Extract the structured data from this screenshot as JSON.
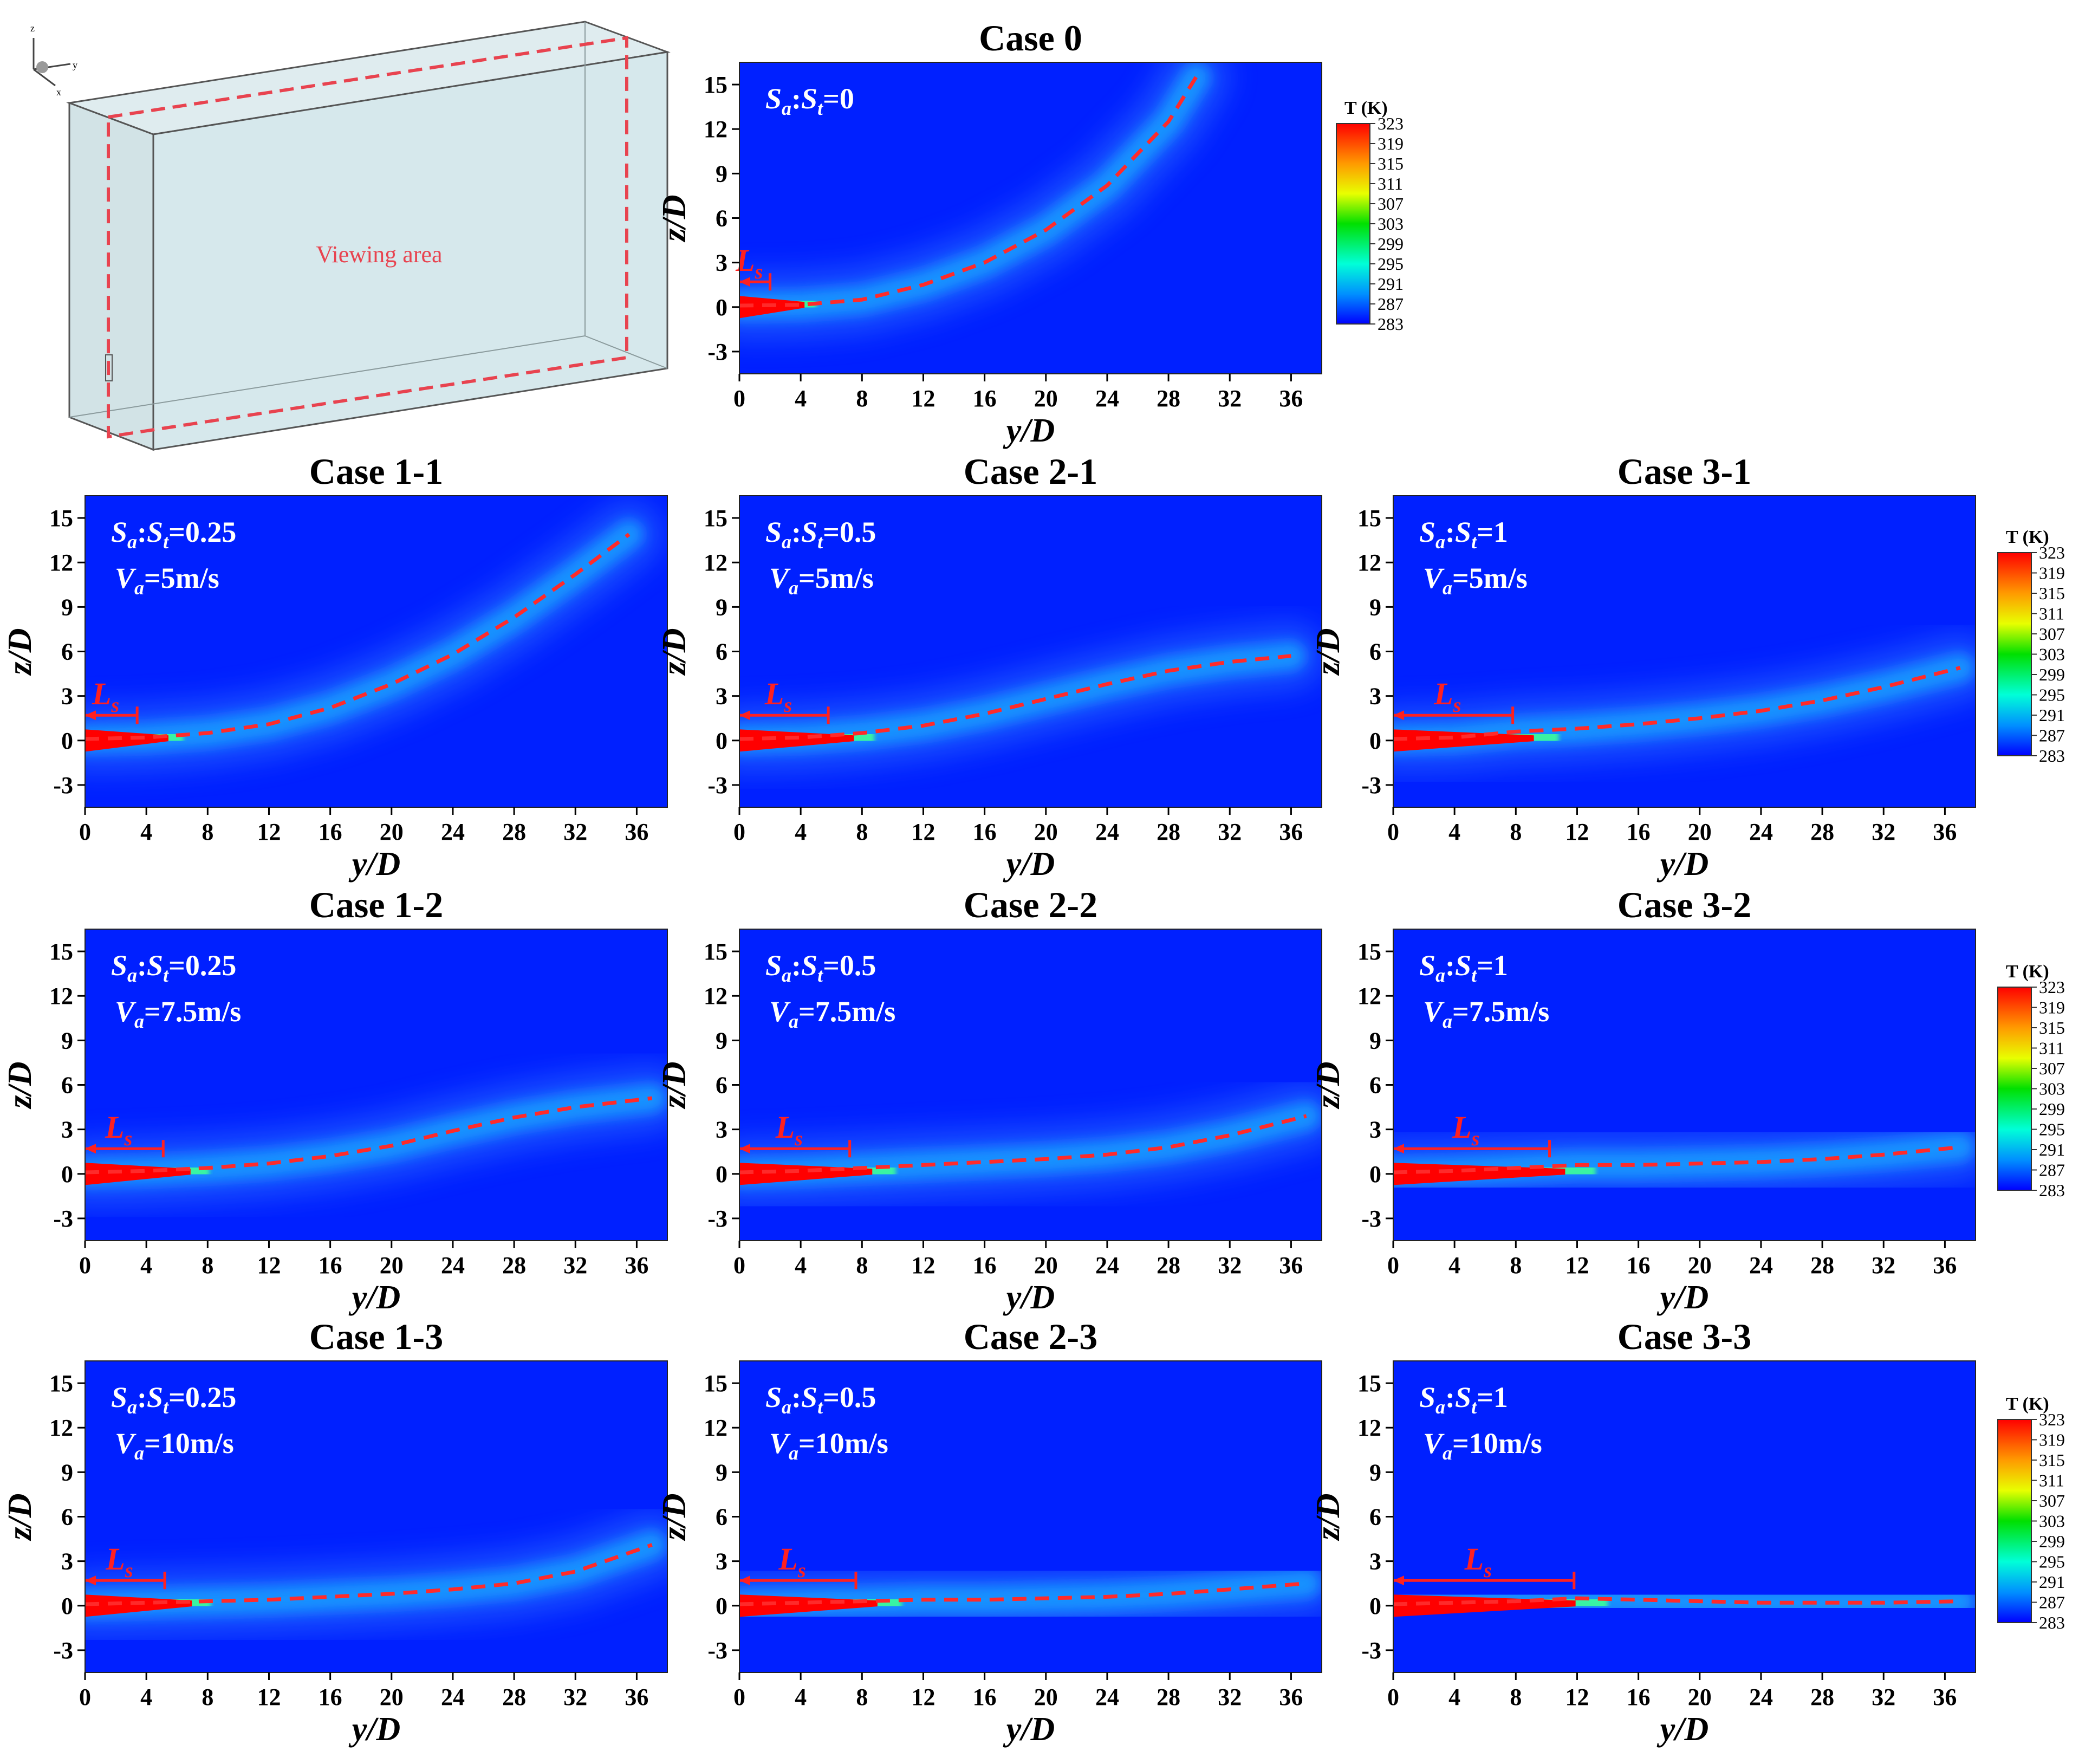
{
  "figure": {
    "viewing_area_label": "Viewing area",
    "axis_triad": {
      "z": "z",
      "y": "y",
      "x": "x"
    }
  },
  "colorbar": {
    "title": "T (K)",
    "labels": [
      "323",
      "319",
      "315",
      "311",
      "307",
      "303",
      "299",
      "295",
      "291",
      "287",
      "283"
    ]
  },
  "colors": {
    "background_field": "#0020ff",
    "jet_core": "#ff0000",
    "trajectory": "#ff2a2a",
    "ls_marker": "#ff2020"
  },
  "axes": {
    "xlabel": "y/D",
    "ylabel": "z/D",
    "xticks": [
      "0",
      "4",
      "8",
      "12",
      "16",
      "20",
      "24",
      "28",
      "32",
      "36"
    ],
    "yticks": [
      "15",
      "12",
      "9",
      "6",
      "3",
      "0",
      "-3"
    ],
    "xlim": [
      0,
      38
    ],
    "ylim": [
      -4.5,
      16.5
    ]
  },
  "chart_data": [
    {
      "type": "heatmap",
      "title": "Case 0",
      "ratio_label": "Sa:St=0",
      "ratio_sub_a": "a",
      "ratio_sub_t": "t",
      "ratio_value": "=0",
      "velocity_label": "",
      "ls_label": "Ls",
      "ls_end": 2.0,
      "trajectory": {
        "x": [
          0,
          4,
          8,
          12,
          16,
          20,
          24,
          28,
          29.8
        ],
        "y": [
          0.1,
          0.15,
          0.5,
          1.5,
          3.0,
          5.2,
          8.2,
          12.5,
          15.5
        ]
      }
    },
    {
      "type": "heatmap",
      "title": "Case 1-1",
      "ratio_label": "Sa:St=0.25",
      "ratio_value": "=0.25",
      "velocity_label": "Va=5m/s",
      "velocity_value": "=5m/s",
      "ls_label": "Ls",
      "ls_end": 3.4,
      "trajectory": {
        "x": [
          0,
          4,
          8,
          12,
          16,
          20,
          24,
          28,
          32,
          35.5
        ],
        "y": [
          0.1,
          0.2,
          0.5,
          1.1,
          2.2,
          3.8,
          5.8,
          8.3,
          11.2,
          13.9
        ]
      }
    },
    {
      "type": "heatmap",
      "title": "Case 2-1",
      "ratio_label": "Sa:St=0.5",
      "ratio_value": "=0.5",
      "velocity_label": "Va=5m/s",
      "velocity_value": "=5m/s",
      "ls_label": "Ls",
      "ls_end": 5.8,
      "trajectory": {
        "x": [
          0,
          4,
          8,
          12,
          16,
          20,
          24,
          28,
          32,
          36
        ],
        "y": [
          0.1,
          0.2,
          0.5,
          1.0,
          1.8,
          2.8,
          3.8,
          4.7,
          5.3,
          5.7
        ]
      }
    },
    {
      "type": "heatmap",
      "title": "Case 3-1",
      "ratio_label": "Sa:St=1",
      "ratio_value": "=1",
      "velocity_label": "Va=5m/s",
      "velocity_value": "=5m/s",
      "ls_label": "Ls",
      "ls_end": 7.8,
      "trajectory": {
        "x": [
          0,
          4,
          8,
          12,
          16,
          20,
          24,
          28,
          32,
          37
        ],
        "y": [
          0.1,
          0.2,
          0.6,
          0.8,
          1.1,
          1.5,
          2.0,
          2.7,
          3.6,
          4.9
        ]
      }
    },
    {
      "type": "heatmap",
      "title": "Case 1-2",
      "ratio_label": "Sa:St=0.25",
      "ratio_value": "=0.25",
      "velocity_label": "Va=7.5m/s",
      "velocity_value": "=7.5m/s",
      "ls_label": "Ls",
      "ls_end": 5.1,
      "trajectory": {
        "x": [
          0,
          4,
          8,
          12,
          16,
          20,
          24,
          28,
          32,
          37
        ],
        "y": [
          0.1,
          0.2,
          0.4,
          0.7,
          1.2,
          1.9,
          2.9,
          3.8,
          4.5,
          5.1
        ]
      }
    },
    {
      "type": "heatmap",
      "title": "Case 2-2",
      "ratio_label": "Sa:St=0.5",
      "ratio_value": "=0.5",
      "velocity_label": "Va=7.5m/s",
      "velocity_value": "=7.5m/s",
      "ls_label": "Ls",
      "ls_end": 7.2,
      "trajectory": {
        "x": [
          0,
          4,
          8,
          12,
          16,
          20,
          24,
          28,
          32,
          37
        ],
        "y": [
          0.1,
          0.2,
          0.4,
          0.6,
          0.8,
          1.0,
          1.3,
          1.8,
          2.6,
          3.9
        ]
      }
    },
    {
      "type": "heatmap",
      "title": "Case 3-2",
      "ratio_label": "Sa:St=1",
      "ratio_value": "=1",
      "velocity_label": "Va=7.5m/s",
      "velocity_value": "=7.5m/s",
      "ls_label": "Ls",
      "ls_end": 10.2,
      "trajectory": {
        "x": [
          0,
          4,
          8,
          12,
          16,
          20,
          24,
          28,
          32,
          37
        ],
        "y": [
          0.1,
          0.2,
          0.4,
          0.6,
          0.6,
          0.7,
          0.8,
          1.0,
          1.3,
          1.8
        ]
      }
    },
    {
      "type": "heatmap",
      "title": "Case 1-3",
      "ratio_label": "Sa:St=0.25",
      "ratio_value": "=0.25",
      "velocity_label": "Va=10m/s",
      "velocity_value": "=10m/s",
      "ls_label": "Ls",
      "ls_end": 5.2,
      "trajectory": {
        "x": [
          0,
          4,
          8,
          12,
          16,
          20,
          24,
          28,
          32,
          37
        ],
        "y": [
          0.1,
          0.2,
          0.3,
          0.4,
          0.6,
          0.8,
          1.1,
          1.5,
          2.3,
          4.1
        ]
      }
    },
    {
      "type": "heatmap",
      "title": "Case 2-3",
      "ratio_label": "Sa:St=0.5",
      "ratio_value": "=0.5",
      "velocity_label": "Va=10m/s",
      "velocity_value": "=10m/s",
      "ls_label": "Ls",
      "ls_end": 7.6,
      "trajectory": {
        "x": [
          0,
          4,
          8,
          12,
          16,
          20,
          24,
          28,
          32,
          37
        ],
        "y": [
          0.1,
          0.2,
          0.3,
          0.4,
          0.4,
          0.5,
          0.6,
          0.8,
          1.1,
          1.5
        ]
      }
    },
    {
      "type": "heatmap",
      "title": "Case 3-3",
      "ratio_label": "Sa:St=1",
      "ratio_value": "=1",
      "velocity_label": "Va=10m/s",
      "velocity_value": "=10m/s",
      "ls_label": "Ls",
      "ls_end": 11.8,
      "trajectory": {
        "x": [
          0,
          4,
          8,
          12,
          16,
          20,
          24,
          28,
          32,
          37
        ],
        "y": [
          0.1,
          0.2,
          0.3,
          0.5,
          0.4,
          0.3,
          0.2,
          0.2,
          0.2,
          0.3
        ]
      }
    }
  ]
}
